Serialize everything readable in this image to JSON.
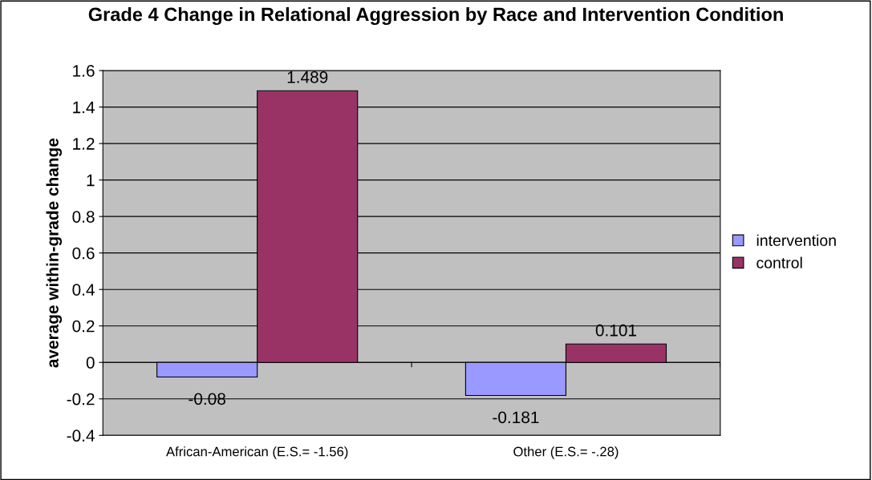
{
  "chart_data": {
    "type": "bar",
    "title": "Grade 4 Change in Relational Aggression by Race and Intervention Condition",
    "ylabel": "average within-grade change",
    "categories": [
      "African-American (E.S.= -1.56)",
      "Other (E.S.= -.28)"
    ],
    "series": [
      {
        "name": "intervention",
        "color": "#9999ff",
        "values": [
          -0.08,
          -0.181
        ]
      },
      {
        "name": "control",
        "color": "#993366",
        "values": [
          1.489,
          0.101
        ]
      }
    ],
    "ylim": [
      -0.4,
      1.6
    ],
    "yticks": [
      -0.4,
      -0.2,
      0,
      0.2,
      0.4,
      0.6,
      0.8,
      1,
      1.2,
      1.4,
      1.6
    ],
    "grid": "y",
    "legend": "right",
    "data_labels": true
  }
}
